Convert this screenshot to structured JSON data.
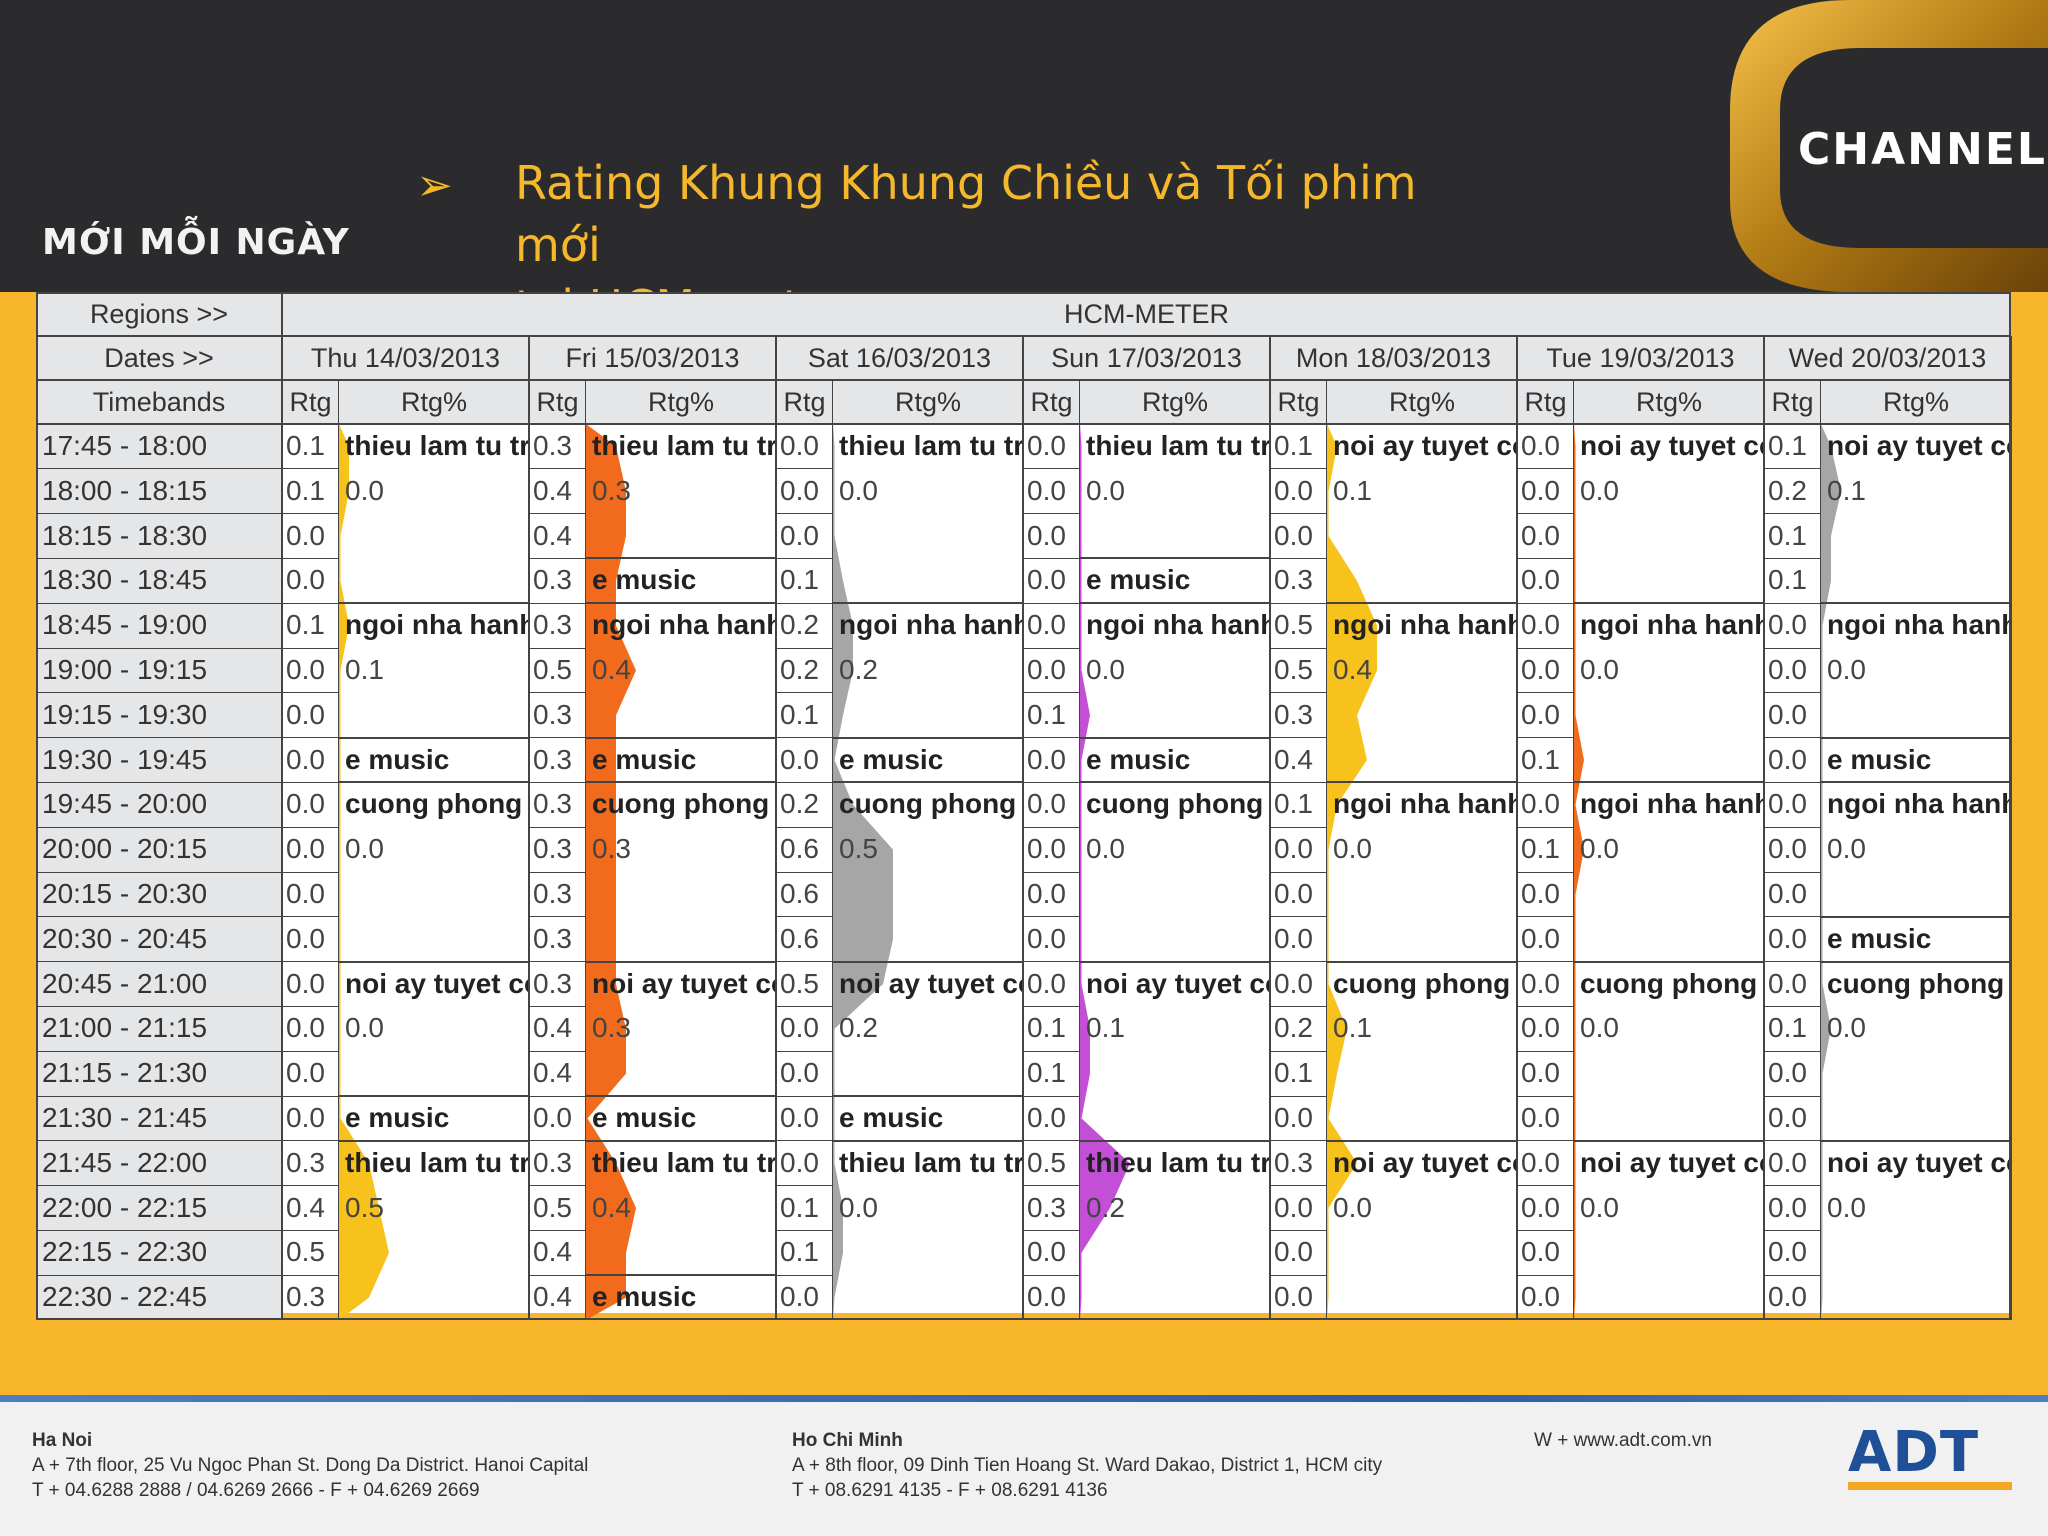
{
  "header": {
    "logo_left": "MỚI MỖI NGÀY",
    "title_line1": "Rating Khung Khung Chiều và Tối phim mới",
    "title_line2": "tại HCM meter",
    "channel_logo": "CHANNEL",
    "arrow_icon": "arrow-bullet-icon"
  },
  "table": {
    "regions_label": "Regions >>",
    "region_value": "HCM-METER",
    "dates_label": "Dates >>",
    "timebands_label": "Timebands",
    "rtg_label": "Rtg",
    "rtgpct_label": "Rtg%",
    "days": [
      {
        "date": "Thu 14/03/2013",
        "color": "#f7c21c",
        "rtg": [
          "0.1",
          "0.1",
          "0.0",
          "0.0",
          "0.1",
          "0.0",
          "0.0",
          "0.0",
          "0.0",
          "0.0",
          "0.0",
          "0.0",
          "0.0",
          "0.0",
          "0.0",
          "0.0",
          "0.3",
          "0.4",
          "0.5",
          "0.3"
        ],
        "blocks": [
          {
            "s": 0,
            "e": 3,
            "name": "thieu lam tu tr",
            "pct": "0.0"
          },
          {
            "s": 4,
            "e": 6,
            "name": "ngoi nha hanh",
            "pct": "0.1"
          },
          {
            "s": 7,
            "e": 7,
            "name": "e music",
            "pct": ""
          },
          {
            "s": 8,
            "e": 11,
            "name": "cuong phong",
            "pct": "0.0"
          },
          {
            "s": 12,
            "e": 14,
            "name": "noi ay tuyet co",
            "pct": "0.0"
          },
          {
            "s": 15,
            "e": 15,
            "name": "e music",
            "pct": ""
          },
          {
            "s": 16,
            "e": 19,
            "name": "thieu lam tu tr",
            "pct": "0.5"
          }
        ]
      },
      {
        "date": "Fri 15/03/2013",
        "color": "#f26a1b",
        "rtg": [
          "0.3",
          "0.4",
          "0.4",
          "0.3",
          "0.3",
          "0.5",
          "0.3",
          "0.3",
          "0.3",
          "0.3",
          "0.3",
          "0.3",
          "0.3",
          "0.4",
          "0.4",
          "0.0",
          "0.3",
          "0.5",
          "0.4",
          "0.4"
        ],
        "blocks": [
          {
            "s": 0,
            "e": 2,
            "name": "thieu lam tu tr",
            "pct": "0.3"
          },
          {
            "s": 3,
            "e": 3,
            "name": "e music",
            "pct": ""
          },
          {
            "s": 4,
            "e": 6,
            "name": "ngoi nha hanh",
            "pct": "0.4"
          },
          {
            "s": 7,
            "e": 7,
            "name": "e music",
            "pct": ""
          },
          {
            "s": 8,
            "e": 11,
            "name": "cuong phong",
            "pct": "0.3"
          },
          {
            "s": 12,
            "e": 14,
            "name": "noi ay tuyet co",
            "pct": "0.3"
          },
          {
            "s": 15,
            "e": 15,
            "name": "e music",
            "pct": ""
          },
          {
            "s": 16,
            "e": 18,
            "name": "thieu lam tu tr",
            "pct": "0.4"
          },
          {
            "s": 19,
            "e": 19,
            "name": "e music",
            "pct": ""
          }
        ]
      },
      {
        "date": "Sat 16/03/2013",
        "color": "#a6a6a6",
        "rtg": [
          "0.0",
          "0.0",
          "0.0",
          "0.1",
          "0.2",
          "0.2",
          "0.1",
          "0.0",
          "0.2",
          "0.6",
          "0.6",
          "0.6",
          "0.5",
          "0.0",
          "0.0",
          "0.0",
          "0.0",
          "0.1",
          "0.1",
          "0.0"
        ],
        "blocks": [
          {
            "s": 0,
            "e": 3,
            "name": "thieu lam tu tr",
            "pct": "0.0"
          },
          {
            "s": 4,
            "e": 6,
            "name": "ngoi nha hanh",
            "pct": "0.2"
          },
          {
            "s": 7,
            "e": 7,
            "name": "e music",
            "pct": ""
          },
          {
            "s": 8,
            "e": 11,
            "name": "cuong phong",
            "pct": "0.5"
          },
          {
            "s": 12,
            "e": 14,
            "name": "noi ay tuyet co",
            "pct": "0.2"
          },
          {
            "s": 15,
            "e": 15,
            "name": "e music",
            "pct": ""
          },
          {
            "s": 16,
            "e": 19,
            "name": "thieu lam tu tr",
            "pct": "0.0"
          }
        ]
      },
      {
        "date": "Sun 17/03/2013",
        "color": "#c34fd6",
        "rtg": [
          "0.0",
          "0.0",
          "0.0",
          "0.0",
          "0.0",
          "0.0",
          "0.1",
          "0.0",
          "0.0",
          "0.0",
          "0.0",
          "0.0",
          "0.0",
          "0.1",
          "0.1",
          "0.0",
          "0.5",
          "0.3",
          "0.0",
          "0.0"
        ],
        "blocks": [
          {
            "s": 0,
            "e": 2,
            "name": "thieu lam tu tr",
            "pct": "0.0"
          },
          {
            "s": 3,
            "e": 3,
            "name": "e music",
            "pct": ""
          },
          {
            "s": 4,
            "e": 6,
            "name": "ngoi nha hanh",
            "pct": "0.0"
          },
          {
            "s": 7,
            "e": 7,
            "name": "e music",
            "pct": ""
          },
          {
            "s": 8,
            "e": 11,
            "name": "cuong phong",
            "pct": "0.0"
          },
          {
            "s": 12,
            "e": 15,
            "name": "noi ay tuyet co",
            "pct": "0.1"
          },
          {
            "s": 16,
            "e": 19,
            "name": "thieu lam tu tr",
            "pct": "0.2"
          }
        ]
      },
      {
        "date": "Mon 18/03/2013",
        "color": "#f7c21c",
        "rtg": [
          "0.1",
          "0.0",
          "0.0",
          "0.3",
          "0.5",
          "0.5",
          "0.3",
          "0.4",
          "0.1",
          "0.0",
          "0.0",
          "0.0",
          "0.0",
          "0.2",
          "0.1",
          "0.0",
          "0.3",
          "0.0",
          "0.0",
          "0.0"
        ],
        "blocks": [
          {
            "s": 0,
            "e": 3,
            "name": "noi ay tuyet co",
            "pct": "0.1"
          },
          {
            "s": 4,
            "e": 7,
            "name": "ngoi nha hanh",
            "pct": "0.4"
          },
          {
            "s": 8,
            "e": 11,
            "name": "ngoi nha hanh",
            "pct": "0.0"
          },
          {
            "s": 12,
            "e": 15,
            "name": "cuong phong",
            "pct": "0.1"
          },
          {
            "s": 16,
            "e": 19,
            "name": "noi ay tuyet co",
            "pct": "0.0"
          }
        ]
      },
      {
        "date": "Tue 19/03/2013",
        "color": "#f26a1b",
        "rtg": [
          "0.0",
          "0.0",
          "0.0",
          "0.0",
          "0.0",
          "0.0",
          "0.0",
          "0.1",
          "0.0",
          "0.1",
          "0.0",
          "0.0",
          "0.0",
          "0.0",
          "0.0",
          "0.0",
          "0.0",
          "0.0",
          "0.0",
          "0.0"
        ],
        "blocks": [
          {
            "s": 0,
            "e": 3,
            "name": "noi ay tuyet co",
            "pct": "0.0"
          },
          {
            "s": 4,
            "e": 7,
            "name": "ngoi nha hanh",
            "pct": "0.0"
          },
          {
            "s": 8,
            "e": 11,
            "name": "ngoi nha hanh",
            "pct": "0.0"
          },
          {
            "s": 12,
            "e": 15,
            "name": "cuong phong",
            "pct": "0.0"
          },
          {
            "s": 16,
            "e": 19,
            "name": "noi ay tuyet co",
            "pct": "0.0"
          }
        ]
      },
      {
        "date": "Wed 20/03/2013",
        "color": "#a6a6a6",
        "rtg": [
          "0.1",
          "0.2",
          "0.1",
          "0.1",
          "0.0",
          "0.0",
          "0.0",
          "0.0",
          "0.0",
          "0.0",
          "0.0",
          "0.0",
          "0.0",
          "0.1",
          "0.0",
          "0.0",
          "0.0",
          "0.0",
          "0.0",
          "0.0"
        ],
        "blocks": [
          {
            "s": 0,
            "e": 3,
            "name": "noi ay tuyet co",
            "pct": "0.1"
          },
          {
            "s": 4,
            "e": 6,
            "name": "ngoi nha hanh",
            "pct": "0.0"
          },
          {
            "s": 7,
            "e": 7,
            "name": "e music",
            "pct": ""
          },
          {
            "s": 8,
            "e": 10,
            "name": "ngoi nha hanh",
            "pct": "0.0"
          },
          {
            "s": 11,
            "e": 11,
            "name": "e music",
            "pct": ""
          },
          {
            "s": 12,
            "e": 15,
            "name": "cuong phong",
            "pct": "0.0"
          },
          {
            "s": 16,
            "e": 19,
            "name": "noi ay tuyet co",
            "pct": "0.0"
          }
        ]
      }
    ],
    "timebands": [
      "17:45 - 18:00",
      "18:00 - 18:15",
      "18:15 - 18:30",
      "18:30 - 18:45",
      "18:45 - 19:00",
      "19:00 - 19:15",
      "19:15 - 19:30",
      "19:30 - 19:45",
      "19:45 - 20:00",
      "20:00 - 20:15",
      "20:15 - 20:30",
      "20:30 - 20:45",
      "20:45 - 21:00",
      "21:00 - 21:15",
      "21:15 - 21:30",
      "21:30 - 21:45",
      "21:45 - 22:00",
      "22:00 - 22:15",
      "22:15 - 22:30",
      "22:30 - 22:45"
    ]
  },
  "footer": {
    "hanoi_title": "Ha Noi",
    "hanoi_addr": "A + 7th floor, 25 Vu Ngoc Phan St. Dong Da District. Hanoi Capital",
    "hanoi_phone": "T + 04.6288 2888 / 04.6269 2666 - F + 04.6269 2669",
    "hcm_title": "Ho Chi Minh",
    "hcm_addr": "A + 8th floor, 09 Dinh Tien Hoang St. Ward Dakao, District 1, HCM city",
    "hcm_phone": "T + 08.6291 4135 - F + 08.6291 4136",
    "web": "W + www.adt.com.vn",
    "logo": "ADT"
  }
}
